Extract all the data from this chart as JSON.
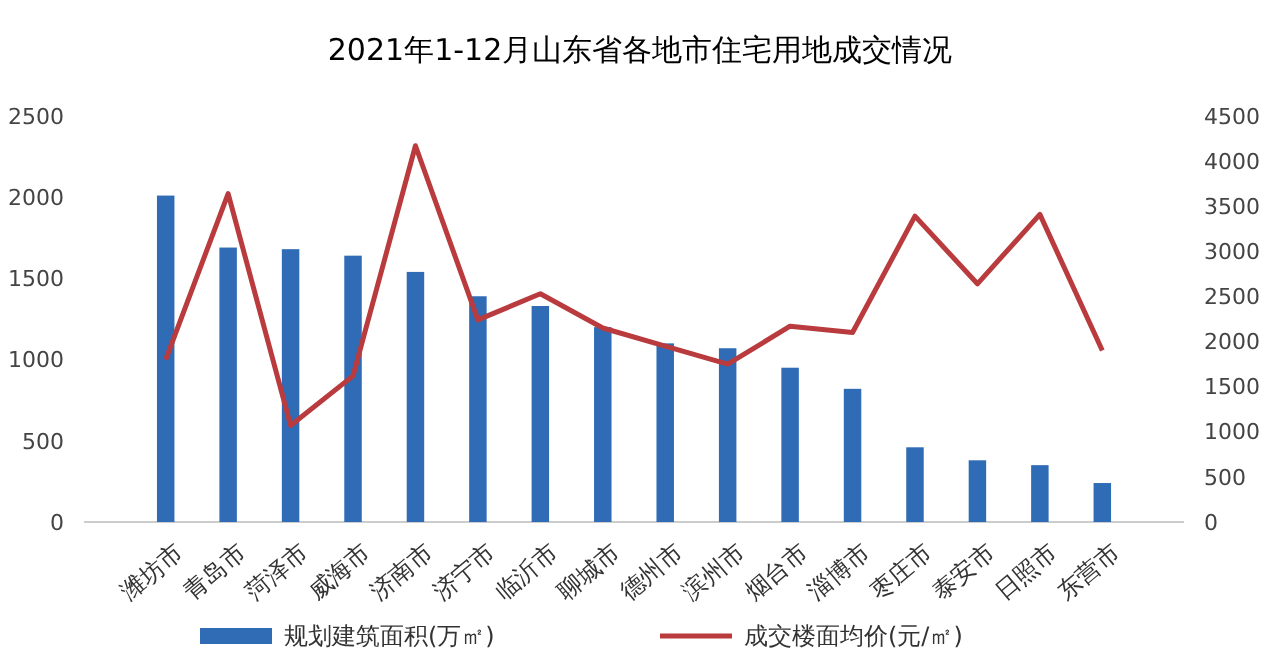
{
  "chart_data": {
    "type": "bar",
    "title": "2021年1-12月山东省各地市住宅用地成交情况",
    "categories": [
      "潍坊市",
      "青岛市",
      "菏泽市",
      "威海市",
      "济南市",
      "济宁市",
      "临沂市",
      "聊城市",
      "德州市",
      "滨州市",
      "烟台市",
      "淄博市",
      "枣庄市",
      "泰安市",
      "日照市",
      "东营市"
    ],
    "series": [
      {
        "name": "规划建筑面积(万㎡)",
        "color": "#2f6cb5",
        "values": [
          2010,
          1690,
          1680,
          1640,
          1540,
          1390,
          1330,
          1200,
          1100,
          1070,
          950,
          820,
          460,
          380,
          350,
          240
        ]
      },
      {
        "name": "成交楼面均价(元/㎡)",
        "type": "line",
        "axis": "y2",
        "color": "#b93b3e",
        "values": [
          1800,
          3640,
          1070,
          1620,
          4170,
          2240,
          2530,
          2150,
          1950,
          1750,
          2170,
          2100,
          3390,
          2640,
          3410,
          1900
        ]
      }
    ],
    "ylim": [
      0,
      2500
    ],
    "yticks": [
      0,
      500,
      1000,
      1500,
      2000,
      2500
    ],
    "y2lim": [
      0,
      4500
    ],
    "y2ticks": [
      0,
      500,
      1000,
      1500,
      2000,
      2500,
      3000,
      3500,
      4000,
      4500
    ],
    "grid": false,
    "legend": "bottom"
  }
}
